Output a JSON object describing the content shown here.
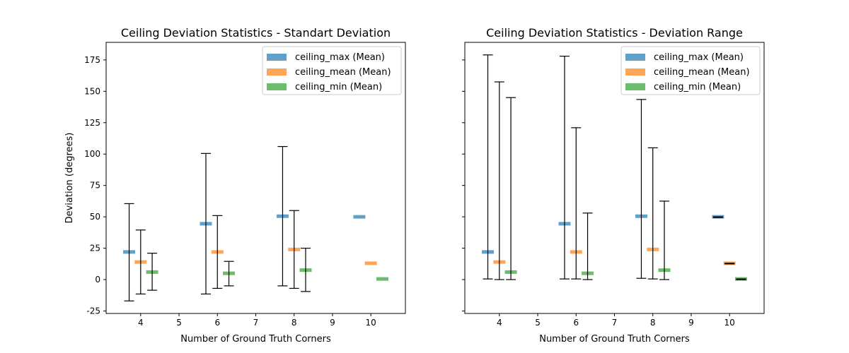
{
  "chart_data": [
    {
      "type": "errorbar",
      "title": "Ceiling Deviation Statistics - Standart Deviation",
      "xlabel": "Number of Ground Truth Corners",
      "ylabel": "Deviation (degrees)",
      "xlim": [
        3.1,
        10.9
      ],
      "ylim": [
        -27,
        189
      ],
      "xticks": [
        4,
        5,
        6,
        7,
        8,
        9,
        10
      ],
      "yticks": [
        -25,
        0,
        25,
        50,
        75,
        100,
        125,
        150,
        175
      ],
      "legend_position": "upper right",
      "series": [
        {
          "name": "ceiling_max (Mean)",
          "color": "#1f77b4",
          "offset": -0.3,
          "points": [
            {
              "x": 4,
              "mean": 22,
              "low": -17,
              "high": 60.5
            },
            {
              "x": 6,
              "mean": 44.5,
              "low": -11.5,
              "high": 100.5
            },
            {
              "x": 8,
              "mean": 50.5,
              "low": -5,
              "high": 106
            },
            {
              "x": 10,
              "mean": 50,
              "low": null,
              "high": null
            }
          ]
        },
        {
          "name": "ceiling_mean (Mean)",
          "color": "#ff7f0e",
          "offset": 0,
          "points": [
            {
              "x": 4,
              "mean": 14,
              "low": -11.5,
              "high": 39.5
            },
            {
              "x": 6,
              "mean": 22,
              "low": -7,
              "high": 51
            },
            {
              "x": 8,
              "mean": 24,
              "low": -7,
              "high": 55
            },
            {
              "x": 10,
              "mean": 13,
              "low": null,
              "high": null
            }
          ]
        },
        {
          "name": "ceiling_min (Mean)",
          "color": "#2ca02c",
          "offset": 0.3,
          "points": [
            {
              "x": 4,
              "mean": 6,
              "low": -8.5,
              "high": 21
            },
            {
              "x": 6,
              "mean": 5,
              "low": -5,
              "high": 14.5
            },
            {
              "x": 8,
              "mean": 7.5,
              "low": -9.5,
              "high": 25
            },
            {
              "x": 10,
              "mean": 0.5,
              "low": null,
              "high": null
            }
          ]
        }
      ]
    },
    {
      "type": "errorbar",
      "title": "Ceiling Deviation Statistics - Deviation Range",
      "xlabel": "Number of Ground Truth Corners",
      "ylabel": "",
      "xlim": [
        3.1,
        10.9
      ],
      "ylim": [
        -27,
        189
      ],
      "xticks": [
        4,
        5,
        6,
        7,
        8,
        9,
        10
      ],
      "yticks": [
        -25,
        0,
        25,
        50,
        75,
        100,
        125,
        150,
        175
      ],
      "show_ytick_labels": false,
      "legend_position": "upper right",
      "series": [
        {
          "name": "ceiling_max (Mean)",
          "color": "#1f77b4",
          "offset": -0.3,
          "points": [
            {
              "x": 4,
              "mean": 22,
              "low": 0.5,
              "high": 179
            },
            {
              "x": 6,
              "mean": 44.5,
              "low": 0.5,
              "high": 178
            },
            {
              "x": 8,
              "mean": 50.5,
              "low": 1,
              "high": 143.5
            },
            {
              "x": 10,
              "mean": 50,
              "low": 49.5,
              "high": 50
            }
          ]
        },
        {
          "name": "ceiling_mean (Mean)",
          "color": "#ff7f0e",
          "offset": 0,
          "points": [
            {
              "x": 4,
              "mean": 14,
              "low": 0,
              "high": 157.5
            },
            {
              "x": 6,
              "mean": 22,
              "low": 0.5,
              "high": 121
            },
            {
              "x": 8,
              "mean": 24,
              "low": 0.5,
              "high": 105
            },
            {
              "x": 10,
              "mean": 13,
              "low": 12.5,
              "high": 13
            }
          ]
        },
        {
          "name": "ceiling_min (Mean)",
          "color": "#2ca02c",
          "offset": 0.3,
          "points": [
            {
              "x": 4,
              "mean": 6,
              "low": 0,
              "high": 145
            },
            {
              "x": 6,
              "mean": 5,
              "low": 0,
              "high": 53
            },
            {
              "x": 8,
              "mean": 7.5,
              "low": 0,
              "high": 62.5
            },
            {
              "x": 10,
              "mean": 0.5,
              "low": 0,
              "high": 0.5
            }
          ]
        }
      ]
    }
  ]
}
